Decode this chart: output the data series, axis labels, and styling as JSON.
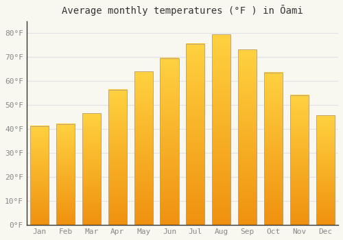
{
  "title": "Average monthly temperatures (°F ) in Ōami",
  "months": [
    "Jan",
    "Feb",
    "Mar",
    "Apr",
    "May",
    "Jun",
    "Jul",
    "Aug",
    "Sep",
    "Oct",
    "Nov",
    "Dec"
  ],
  "values": [
    41.2,
    42.1,
    46.6,
    56.5,
    64.0,
    69.6,
    75.7,
    79.5,
    73.2,
    63.5,
    54.1,
    45.7
  ],
  "bar_color_top": "#FFCC44",
  "bar_color_bottom": "#F0920A",
  "bar_border_color": "#B8A080",
  "background_color": "#f8f8f0",
  "grid_color": "#e0e0e8",
  "yticks": [
    0,
    10,
    20,
    30,
    40,
    50,
    60,
    70,
    80
  ],
  "ylim": [
    0,
    85
  ],
  "title_fontsize": 10,
  "tick_fontsize": 8,
  "tick_color": "#888888",
  "spine_color": "#333333"
}
